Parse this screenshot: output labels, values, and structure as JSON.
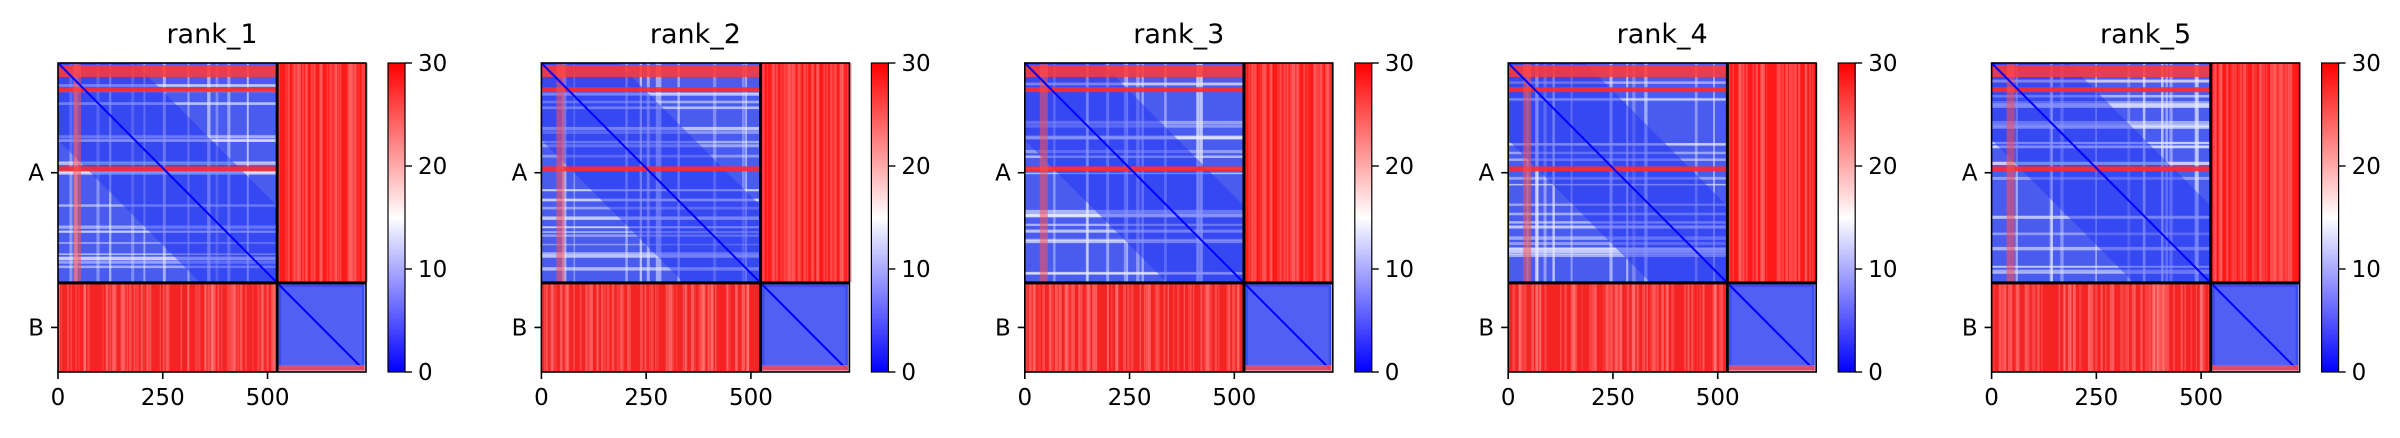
{
  "chart_data": {
    "type": "heatmap",
    "colormap": {
      "low": "#0000ff",
      "mid": "#ffffff",
      "high": "#ff0000"
    },
    "clim": [
      0,
      30
    ],
    "colorbar_ticks": [
      "0",
      "10",
      "20",
      "30"
    ],
    "x_ticks": [
      {
        "value": 0,
        "label": "0"
      },
      {
        "value": 250,
        "label": "250"
      },
      {
        "value": 500,
        "label": "500"
      }
    ],
    "xlim": [
      0,
      735
    ],
    "chain_boundary": 523,
    "chains": [
      {
        "label": "A",
        "center": 261
      },
      {
        "label": "B",
        "center": 629
      }
    ],
    "panels": [
      {
        "title": "rank_1"
      },
      {
        "title": "rank_2"
      },
      {
        "title": "rank_3"
      },
      {
        "title": "rank_4"
      },
      {
        "title": "rank_5"
      }
    ]
  }
}
